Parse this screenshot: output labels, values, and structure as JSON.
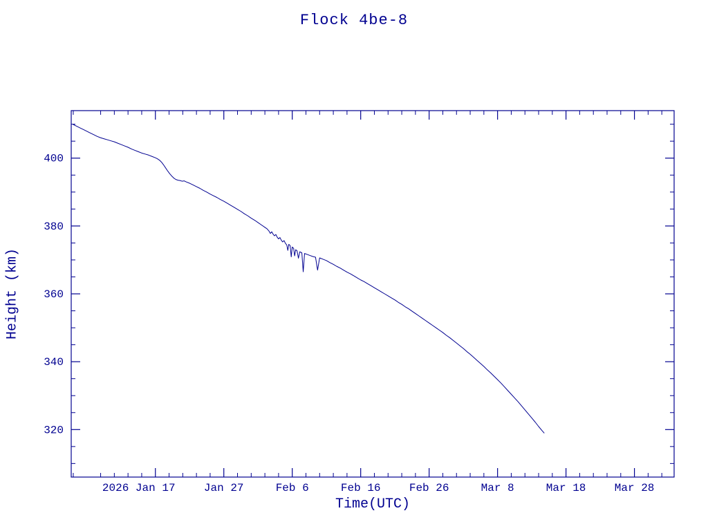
{
  "chart_data": {
    "type": "line",
    "title": "Flock 4be-8",
    "xlabel": "Time(UTC)",
    "ylabel": "Height (km)",
    "color": "#000090",
    "background": "#ffffff",
    "grid": "off",
    "legend": "none",
    "x_note": "x values are day-of-year 2026 (Jan 1 = 1)",
    "xlim": [
      4.7,
      92.8
    ],
    "ylim": [
      306,
      414
    ],
    "x_minor_step": 2,
    "y_minor_step": 5,
    "x_ticks": [
      {
        "day": 17,
        "label": "2026 Jan 17",
        "dx": -24
      },
      {
        "day": 27,
        "label": "Jan 27"
      },
      {
        "day": 37,
        "label": "Feb  6"
      },
      {
        "day": 47,
        "label": "Feb 16"
      },
      {
        "day": 57,
        "label": "Feb 26"
      },
      {
        "day": 67,
        "label": "Mar  8"
      },
      {
        "day": 77,
        "label": "Mar 18"
      },
      {
        "day": 87,
        "label": "Mar 28"
      }
    ],
    "y_ticks": [
      320,
      340,
      360,
      380,
      400
    ],
    "points": [
      [
        5.0,
        409.9
      ],
      [
        5.5,
        409.4
      ],
      [
        6.0,
        408.9
      ],
      [
        6.5,
        408.4
      ],
      [
        7.0,
        407.9
      ],
      [
        7.5,
        407.4
      ],
      [
        8.0,
        406.9
      ],
      [
        8.5,
        406.4
      ],
      [
        9.0,
        406.0
      ],
      [
        9.5,
        405.7
      ],
      [
        10.0,
        405.4
      ],
      [
        10.5,
        405.1
      ],
      [
        11.0,
        404.8
      ],
      [
        11.5,
        404.4
      ],
      [
        12.0,
        404.0
      ],
      [
        12.5,
        403.6
      ],
      [
        13.0,
        403.2
      ],
      [
        13.5,
        402.7
      ],
      [
        14.0,
        402.3
      ],
      [
        14.5,
        401.9
      ],
      [
        15.0,
        401.5
      ],
      [
        15.5,
        401.2
      ],
      [
        16.0,
        400.9
      ],
      [
        16.5,
        400.5
      ],
      [
        17.0,
        400.1
      ],
      [
        17.3,
        399.8
      ],
      [
        17.6,
        399.4
      ],
      [
        17.9,
        398.8
      ],
      [
        18.2,
        398.0
      ],
      [
        18.5,
        397.1
      ],
      [
        18.8,
        396.2
      ],
      [
        19.1,
        395.4
      ],
      [
        19.4,
        394.7
      ],
      [
        19.7,
        394.1
      ],
      [
        20.0,
        393.7
      ],
      [
        20.3,
        393.5
      ],
      [
        20.6,
        393.4
      ],
      [
        20.9,
        393.2
      ],
      [
        21.2,
        393.3
      ],
      [
        21.5,
        393.0
      ],
      [
        22.0,
        392.6
      ],
      [
        22.5,
        392.1
      ],
      [
        23.0,
        391.6
      ],
      [
        23.5,
        391.1
      ],
      [
        24.0,
        390.5
      ],
      [
        24.5,
        390.0
      ],
      [
        25.0,
        389.4
      ],
      [
        25.5,
        388.9
      ],
      [
        26.0,
        388.4
      ],
      [
        26.5,
        387.8
      ],
      [
        27.0,
        387.3
      ],
      [
        27.5,
        386.7
      ],
      [
        28.0,
        386.1
      ],
      [
        28.5,
        385.5
      ],
      [
        29.0,
        384.9
      ],
      [
        29.5,
        384.3
      ],
      [
        30.0,
        383.6
      ],
      [
        30.5,
        383.0
      ],
      [
        31.0,
        382.3
      ],
      [
        31.5,
        381.7
      ],
      [
        32.0,
        381.0
      ],
      [
        32.5,
        380.3
      ],
      [
        33.0,
        379.6
      ],
      [
        33.3,
        379.2
      ],
      [
        33.6,
        378.5
      ],
      [
        33.8,
        377.8
      ],
      [
        34.0,
        378.3
      ],
      [
        34.2,
        377.6
      ],
      [
        34.4,
        377.1
      ],
      [
        34.6,
        377.5
      ],
      [
        34.8,
        376.7
      ],
      [
        35.0,
        376.2
      ],
      [
        35.2,
        376.6
      ],
      [
        35.4,
        375.8
      ],
      [
        35.6,
        375.3
      ],
      [
        35.8,
        375.7
      ],
      [
        36.0,
        374.9
      ],
      [
        36.2,
        374.4
      ],
      [
        36.35,
        372.8
      ],
      [
        36.5,
        374.6
      ],
      [
        36.7,
        374.2
      ],
      [
        36.85,
        370.9
      ],
      [
        37.0,
        373.8
      ],
      [
        37.2,
        373.4
      ],
      [
        37.35,
        371.2
      ],
      [
        37.5,
        373.0
      ],
      [
        37.7,
        372.7
      ],
      [
        37.9,
        370.5
      ],
      [
        38.1,
        372.4
      ],
      [
        38.4,
        372.1
      ],
      [
        38.6,
        366.5
      ],
      [
        38.8,
        371.9
      ],
      [
        39.2,
        371.6
      ],
      [
        39.6,
        371.3
      ],
      [
        40.0,
        371.0
      ],
      [
        40.4,
        370.8
      ],
      [
        40.7,
        367.0
      ],
      [
        41.0,
        370.6
      ],
      [
        41.5,
        370.2
      ],
      [
        42.0,
        369.8
      ],
      [
        42.5,
        369.2
      ],
      [
        43.0,
        368.7
      ],
      [
        43.5,
        368.1
      ],
      [
        44.0,
        367.6
      ],
      [
        44.5,
        367.0
      ],
      [
        45.0,
        366.4
      ],
      [
        45.5,
        365.9
      ],
      [
        46.0,
        365.3
      ],
      [
        46.5,
        364.7
      ],
      [
        47.0,
        364.1
      ],
      [
        47.5,
        363.6
      ],
      [
        48.0,
        363.0
      ],
      [
        48.5,
        362.4
      ],
      [
        49.0,
        361.8
      ],
      [
        49.5,
        361.2
      ],
      [
        50.0,
        360.6
      ],
      [
        50.5,
        360.0
      ],
      [
        51.0,
        359.4
      ],
      [
        51.5,
        358.8
      ],
      [
        52.0,
        358.2
      ],
      [
        52.5,
        357.5
      ],
      [
        53.0,
        356.9
      ],
      [
        53.5,
        356.2
      ],
      [
        54.0,
        355.6
      ],
      [
        54.5,
        354.9
      ],
      [
        55.0,
        354.2
      ],
      [
        55.5,
        353.5
      ],
      [
        56.0,
        352.8
      ],
      [
        56.5,
        352.1
      ],
      [
        57.0,
        351.4
      ],
      [
        57.5,
        350.7
      ],
      [
        58.0,
        350.0
      ],
      [
        58.5,
        349.3
      ],
      [
        59.0,
        348.6
      ],
      [
        59.5,
        347.8
      ],
      [
        60.0,
        347.1
      ],
      [
        60.5,
        346.3
      ],
      [
        61.0,
        345.5
      ],
      [
        61.5,
        344.7
      ],
      [
        62.0,
        343.9
      ],
      [
        62.5,
        343.0
      ],
      [
        63.0,
        342.2
      ],
      [
        63.5,
        341.3
      ],
      [
        64.0,
        340.4
      ],
      [
        64.5,
        339.5
      ],
      [
        65.0,
        338.6
      ],
      [
        65.5,
        337.6
      ],
      [
        66.0,
        336.7
      ],
      [
        66.5,
        335.7
      ],
      [
        67.0,
        334.7
      ],
      [
        67.5,
        333.7
      ],
      [
        68.0,
        332.6
      ],
      [
        68.5,
        331.5
      ],
      [
        69.0,
        330.4
      ],
      [
        69.5,
        329.3
      ],
      [
        70.0,
        328.2
      ],
      [
        70.5,
        327.0
      ],
      [
        71.0,
        325.8
      ],
      [
        71.5,
        324.6
      ],
      [
        72.0,
        323.4
      ],
      [
        72.5,
        322.2
      ],
      [
        73.0,
        320.9
      ],
      [
        73.5,
        319.7
      ],
      [
        73.8,
        319.0
      ]
    ]
  }
}
